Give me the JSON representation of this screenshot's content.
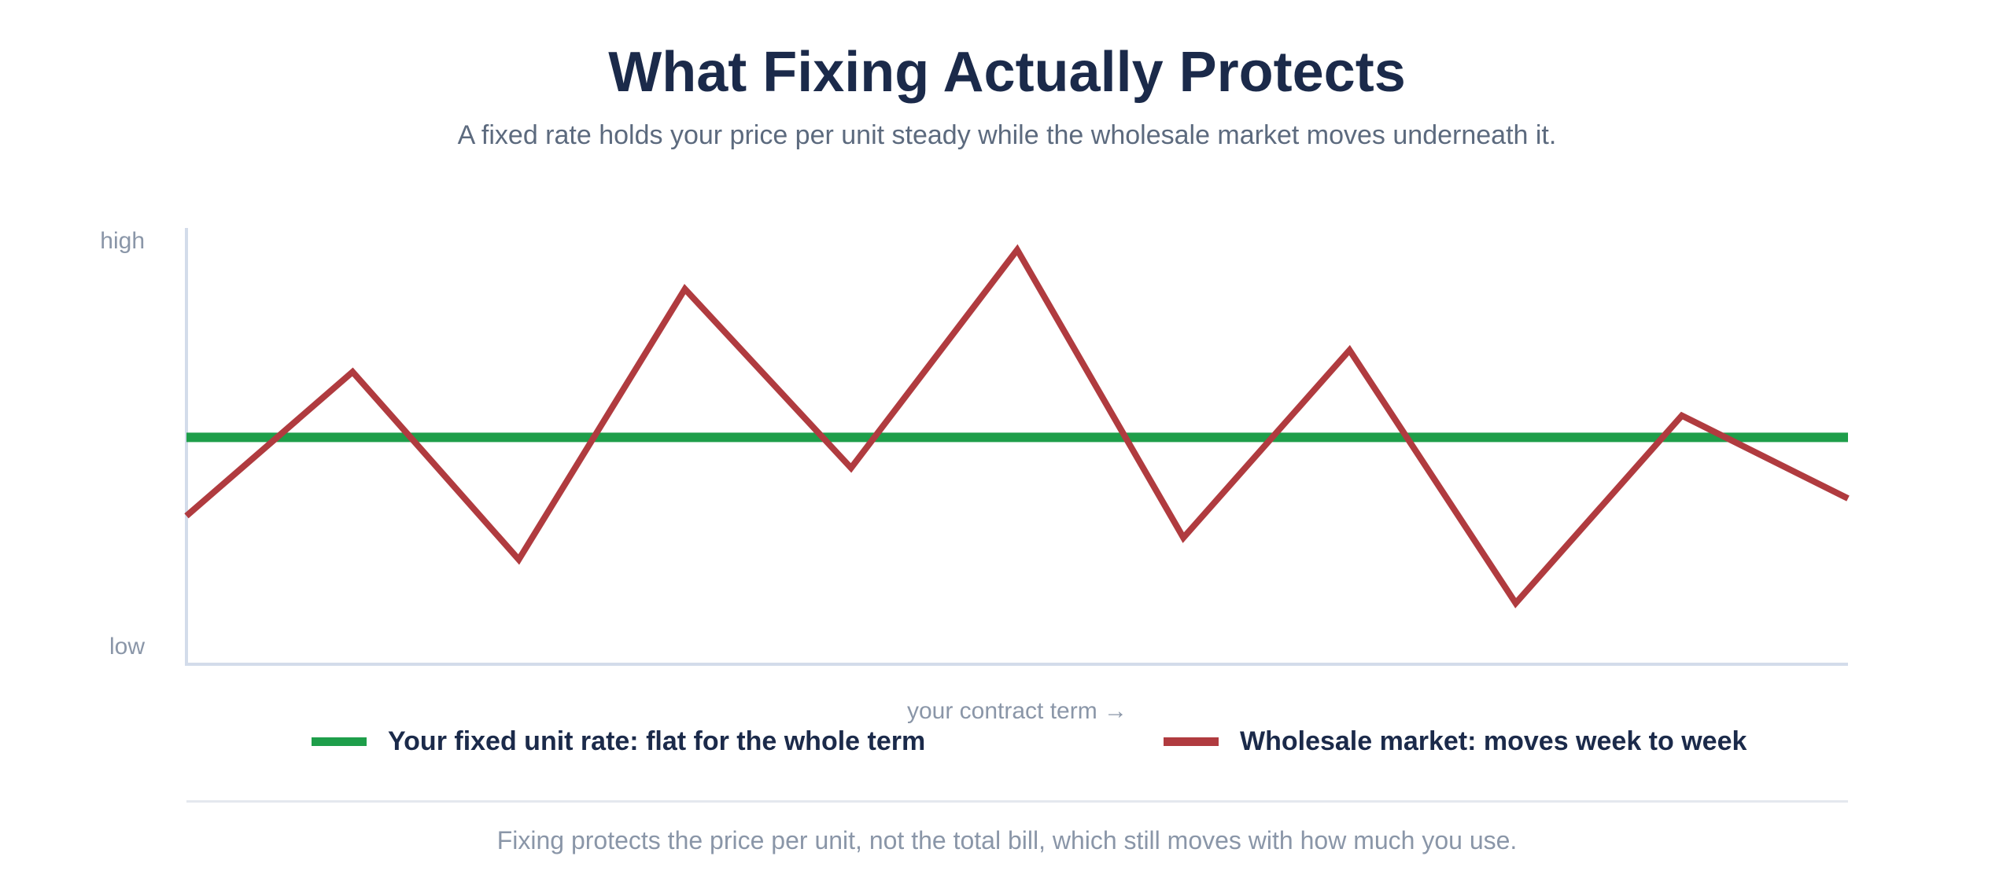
{
  "header": {
    "title": "What Fixing Actually Protects",
    "subtitle": "A fixed rate holds your price per unit steady while the wholesale market moves underneath it."
  },
  "chart_data": {
    "type": "line",
    "x": [
      0,
      1,
      2,
      3,
      4,
      5,
      6,
      7,
      8,
      9,
      10
    ],
    "ylim": [
      0,
      100
    ],
    "y_tick_labels": {
      "high": "high",
      "low": "low"
    },
    "xlabel": "your contract term →",
    "series": [
      {
        "name": "Your fixed unit rate: flat for the whole term",
        "color": "#1e9e4a",
        "values": [
          52,
          52,
          52,
          52,
          52,
          52,
          52,
          52,
          52,
          52,
          52
        ]
      },
      {
        "name": "Wholesale market: moves week to week",
        "color": "#b03b3f",
        "values": [
          34,
          67,
          24,
          86,
          45,
          95,
          29,
          72,
          14,
          57,
          38
        ]
      }
    ],
    "grid": false,
    "legend_position": "bottom"
  },
  "footnote": "Fixing protects the price per unit, not the total bill, which still moves with how much you use."
}
